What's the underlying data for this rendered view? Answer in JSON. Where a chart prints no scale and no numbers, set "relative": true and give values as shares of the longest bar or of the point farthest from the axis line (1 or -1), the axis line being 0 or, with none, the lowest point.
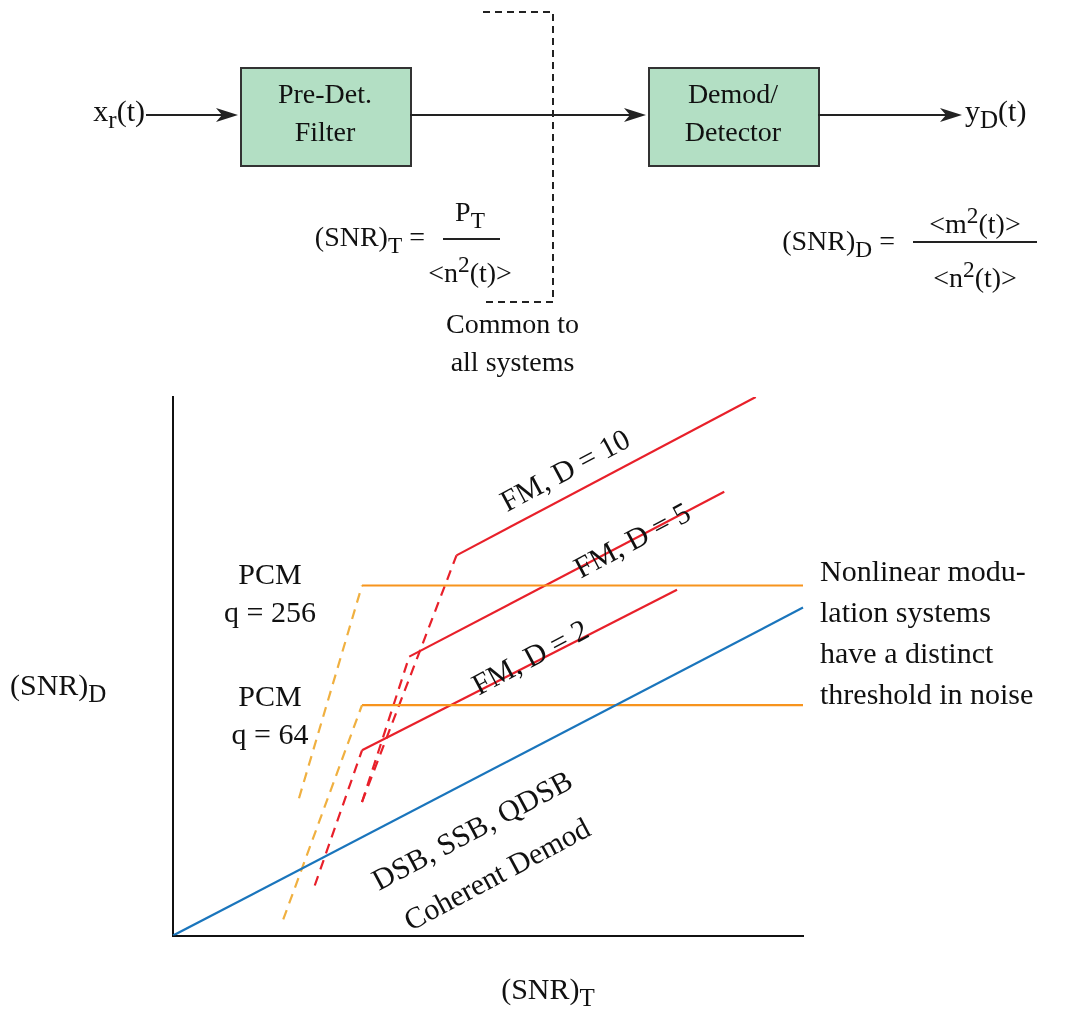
{
  "chart_data": {
    "type": "line",
    "relative": true,
    "xlabel": "(SNR)$_{T}$",
    "ylabel": "(SNR)$_{D}$",
    "marker": "none",
    "categories": [
      null,
      null,
      null,
      null,
      null,
      null,
      null,
      null,
      null,
      null,
      null,
      null,
      null,
      null,
      null,
      null,
      null,
      null,
      null,
      null,
      null,
      null,
      null,
      null,
      null,
      null,
      null,
      null,
      null,
      null,
      null,
      null,
      null,
      null,
      null,
      null,
      null,
      null,
      null,
      null,
      null
    ],
    "series": [
      {
        "color": "#1a75bc",
        "values": [
          0,
          null,
          null,
          null,
          null,
          null,
          null,
          null,
          null,
          null,
          null,
          null,
          null,
          null,
          null,
          null,
          null,
          null,
          null,
          null,
          null,
          null,
          null,
          null,
          null,
          null,
          null,
          null,
          null,
          null,
          null,
          null,
          null,
          null,
          null,
          null,
          null,
          null,
          null,
          null,
          0.609
        ]
      },
      {
        "color": "#f0b040",
        "line_style": "dashed",
        "values": [
          null,
          null,
          null,
          null,
          null,
          null,
          null,
          null,
          0.255,
          null,
          null,
          null,
          0.65,
          null,
          null,
          null,
          null,
          null,
          null,
          null,
          null,
          null,
          null,
          null,
          null,
          null,
          null,
          null,
          null,
          null,
          null,
          null,
          null,
          null,
          null,
          null,
          null,
          null,
          null,
          null,
          null
        ]
      },
      {
        "color": "#f7941d",
        "values": [
          null,
          null,
          null,
          null,
          null,
          null,
          null,
          null,
          null,
          null,
          null,
          null,
          0.65,
          null,
          null,
          null,
          null,
          null,
          null,
          null,
          null,
          null,
          null,
          null,
          null,
          null,
          null,
          null,
          null,
          null,
          null,
          null,
          null,
          null,
          null,
          null,
          null,
          null,
          null,
          null,
          0.65
        ]
      },
      {
        "color": "#f0b040",
        "line_style": "dashed",
        "values": [
          null,
          null,
          null,
          null,
          null,
          null,
          null,
          0.03,
          null,
          null,
          null,
          null,
          0.428,
          null,
          null,
          null,
          null,
          null,
          null,
          null,
          null,
          null,
          null,
          null,
          null,
          null,
          null,
          null,
          null,
          null,
          null,
          null,
          null,
          null,
          null,
          null,
          null,
          null,
          null,
          null,
          null
        ]
      },
      {
        "color": "#f7941d",
        "values": [
          null,
          null,
          null,
          null,
          null,
          null,
          null,
          null,
          null,
          null,
          null,
          null,
          0.428,
          null,
          null,
          null,
          null,
          null,
          null,
          null,
          null,
          null,
          null,
          null,
          null,
          null,
          null,
          null,
          null,
          null,
          null,
          null,
          null,
          null,
          null,
          null,
          null,
          null,
          null,
          null,
          0.428
        ]
      },
      {
        "color": "#e8202a",
        "line_style": "dashed",
        "values": [
          null,
          null,
          null,
          null,
          null,
          null,
          null,
          null,
          null,
          null,
          null,
          null,
          0.248,
          null,
          null,
          null,
          null,
          null,
          0.706,
          null,
          null,
          null,
          null,
          null,
          null,
          null,
          null,
          null,
          null,
          null,
          null,
          null,
          null,
          null,
          null,
          null,
          null,
          null,
          null,
          null,
          null
        ]
      },
      {
        "color": "#e8202a",
        "values": [
          null,
          null,
          null,
          null,
          null,
          null,
          null,
          null,
          null,
          null,
          null,
          null,
          null,
          null,
          null,
          null,
          null,
          null,
          0.706,
          null,
          null,
          null,
          null,
          null,
          null,
          null,
          null,
          null,
          null,
          null,
          null,
          null,
          null,
          null,
          null,
          null,
          null,
          1,
          null,
          null,
          null
        ]
      },
      {
        "color": "#e8202a",
        "line_style": "dashed",
        "values": [
          null,
          null,
          null,
          null,
          null,
          null,
          null,
          null,
          null,
          null,
          null,
          null,
          0.248,
          null,
          null,
          0.518,
          null,
          null,
          null,
          null,
          null,
          null,
          null,
          null,
          null,
          null,
          null,
          null,
          null,
          null,
          null,
          null,
          null,
          null,
          null,
          null,
          null,
          null,
          null,
          null,
          null
        ]
      },
      {
        "color": "#e8202a",
        "values": [
          null,
          null,
          null,
          null,
          null,
          null,
          null,
          null,
          null,
          null,
          null,
          null,
          null,
          null,
          null,
          0.518,
          null,
          null,
          null,
          null,
          null,
          null,
          null,
          null,
          null,
          null,
          null,
          null,
          null,
          null,
          null,
          null,
          null,
          null,
          null,
          0.824,
          null,
          null,
          null,
          null,
          null
        ]
      },
      {
        "color": "#e8202a",
        "line_style": "dashed",
        "values": [
          null,
          null,
          null,
          null,
          null,
          null,
          null,
          null,
          null,
          0.093,
          null,
          null,
          0.344,
          null,
          null,
          null,
          null,
          null,
          null,
          null,
          null,
          null,
          null,
          null,
          null,
          null,
          null,
          null,
          null,
          null,
          null,
          null,
          null,
          null,
          null,
          null,
          null,
          null,
          null,
          null,
          null
        ]
      },
      {
        "color": "#e8202a",
        "values": [
          null,
          null,
          null,
          null,
          null,
          null,
          null,
          null,
          null,
          null,
          null,
          null,
          0.344,
          null,
          null,
          null,
          null,
          null,
          null,
          null,
          null,
          null,
          null,
          null,
          null,
          null,
          null,
          null,
          null,
          null,
          null,
          null,
          0.642,
          null,
          null,
          null,
          null,
          null,
          null,
          null,
          null
        ]
      }
    ],
    "annotations": [
      "x$_{r}$(t)",
      "Pre-Det.\nFilter",
      "Demod/\nDetector",
      "y$_{D}$(t)",
      "(SNR)$_{T}$ =",
      "P$_{T}$",
      "<n$^{2}$(t)>",
      "(SNR)$_{D}$ =",
      "<m$^{2}$(t)>",
      "<n$^{2}$(t)>",
      "Common to\nall systems",
      "Nonlinear modu-\nlation systems\nhave a distinct\nthreshold in noise",
      "PCM\nq = 256",
      "PCM\nq = 64",
      "FM, D = 10",
      "FM, D = 5",
      "FM, D = 2",
      "DSB, SSB, QDSB",
      "Coherent Demod"
    ]
  }
}
